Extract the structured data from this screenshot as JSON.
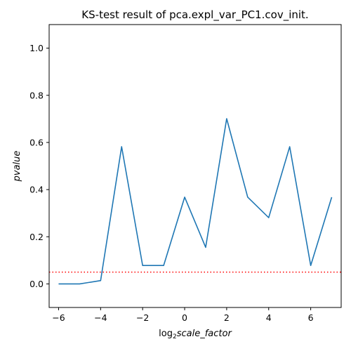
{
  "chart_data": {
    "type": "line",
    "title": "KS-test result of pca.expl_var_PC1.cov_init.",
    "xlabel_prefix": "log",
    "xlabel_sub": "2",
    "xlabel_main": "scale_factor",
    "ylabel": "pvalue",
    "xlim": [
      -6.45,
      7.45
    ],
    "ylim": [
      -0.1,
      1.1
    ],
    "x_ticks": [
      -6,
      -4,
      -2,
      0,
      2,
      4,
      6
    ],
    "x_tick_labels": [
      "−6",
      "−4",
      "−2",
      "0",
      "2",
      "4",
      "6"
    ],
    "y_ticks": [
      0.0,
      0.2,
      0.4,
      0.6,
      0.8,
      1.0
    ],
    "y_tick_labels": [
      "0.0",
      "0.2",
      "0.4",
      "0.6",
      "0.8",
      "1.0"
    ],
    "series": [
      {
        "name": "pvalue",
        "color": "#1f77b4",
        "x": [
          -6,
          -5,
          -4,
          -3,
          -2,
          -1,
          0,
          1,
          2,
          3,
          4,
          5,
          6,
          7
        ],
        "y": [
          0.0,
          0.0,
          0.014,
          0.582,
          0.078,
          0.078,
          0.368,
          0.155,
          0.701,
          0.368,
          0.281,
          0.582,
          0.078,
          0.368
        ]
      }
    ],
    "threshold": {
      "value": 0.05,
      "color": "#ff0000",
      "style": "dotted"
    }
  }
}
